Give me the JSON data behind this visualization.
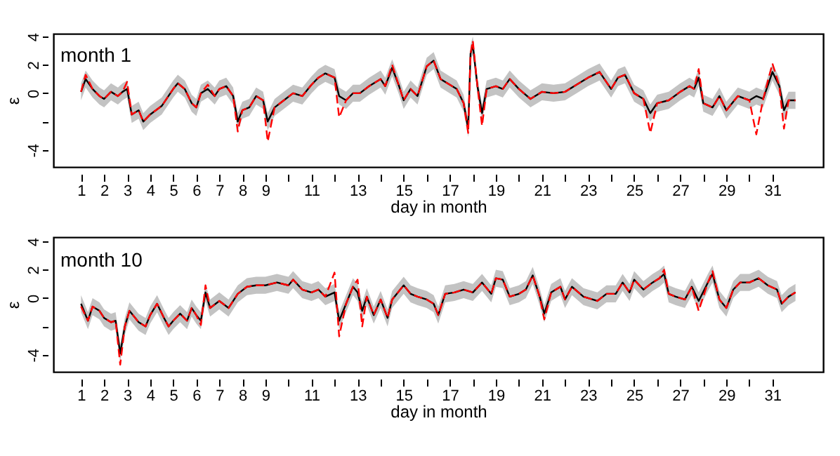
{
  "chart_data": [
    {
      "type": "line",
      "title": "month 1",
      "xlabel": "day in month",
      "ylabel": "ε",
      "xlim": [
        -0.2,
        33.2
      ],
      "ylim": [
        -5.2,
        4.2
      ],
      "xticks": [
        1,
        2,
        3,
        4,
        5,
        6,
        7,
        8,
        9,
        {
          "value": 10,
          "label": null
        },
        11,
        {
          "value": 12,
          "label": null
        },
        13,
        {
          "value": 14,
          "label": null
        },
        15,
        {
          "value": 16,
          "label": null
        },
        17,
        {
          "value": 18,
          "label": null
        },
        19,
        {
          "value": 20,
          "label": null
        },
        21,
        {
          "value": 22,
          "label": null
        },
        23,
        {
          "value": 24,
          "label": null
        },
        25,
        {
          "value": 26,
          "label": null
        },
        27,
        {
          "value": 28,
          "label": null
        },
        29,
        {
          "value": 30,
          "label": null
        },
        31
      ],
      "yticks": [
        -4,
        {
          "value": -2,
          "label": null
        },
        0,
        2,
        4
      ],
      "x": [
        1.0,
        1.2,
        1.5,
        1.8,
        2.0,
        2.3,
        2.6,
        2.8,
        3.0,
        3.2,
        3.5,
        3.7,
        4.0,
        4.5,
        5.0,
        5.2,
        5.5,
        5.8,
        6.0,
        6.2,
        6.5,
        6.8,
        7.0,
        7.3,
        7.6,
        7.8,
        8.0,
        8.3,
        8.6,
        8.9,
        9.1,
        9.4,
        9.8,
        10.2,
        10.6,
        11.0,
        11.3,
        11.6,
        12.0,
        12.2,
        12.5,
        12.8,
        13.1,
        13.5,
        14.0,
        14.2,
        14.5,
        14.8,
        15.0,
        15.3,
        15.6,
        16.0,
        16.3,
        16.6,
        17.0,
        17.3,
        17.6,
        17.8,
        17.9,
        18.0,
        18.2,
        18.4,
        18.6,
        19.0,
        19.3,
        19.6,
        20.0,
        20.5,
        21.0,
        21.5,
        22.0,
        22.5,
        23.0,
        23.5,
        24.0,
        24.3,
        24.6,
        25.0,
        25.4,
        25.7,
        26.0,
        26.5,
        27.0,
        27.4,
        27.6,
        27.8,
        28.0,
        28.4,
        28.7,
        29.0,
        29.5,
        30.0,
        30.3,
        30.6,
        31.0,
        31.3,
        31.5,
        31.7,
        32.0
      ],
      "series": [
        {
          "color": "#000000",
          "line_style": "solid",
          "values": [
            0.1,
            1.0,
            0.3,
            -0.2,
            -0.4,
            0.1,
            -0.2,
            0.1,
            0.3,
            -1.5,
            -1.2,
            -2.0,
            -1.5,
            -0.9,
            0.3,
            0.7,
            0.3,
            -0.7,
            -1.0,
            0.0,
            0.3,
            -0.2,
            0.3,
            0.5,
            -0.2,
            -2.0,
            -1.2,
            -1.0,
            -0.2,
            -0.5,
            -2.0,
            -1.0,
            -0.5,
            0.0,
            -0.2,
            0.6,
            1.1,
            1.4,
            1.1,
            -0.2,
            -0.5,
            0.0,
            0.0,
            0.5,
            1.0,
            0.5,
            1.8,
            0.5,
            -0.5,
            0.3,
            -0.2,
            1.9,
            2.3,
            1.0,
            0.6,
            0.3,
            -0.7,
            -2.5,
            2.8,
            3.4,
            0.5,
            -1.4,
            0.3,
            0.5,
            0.3,
            1.0,
            0.3,
            -0.4,
            0.1,
            0.0,
            0.1,
            0.6,
            1.1,
            1.5,
            0.3,
            1.1,
            1.3,
            0.0,
            -0.4,
            -1.4,
            -0.7,
            -0.5,
            0.1,
            0.5,
            0.3,
            1.1,
            -0.7,
            -1.0,
            -0.2,
            -1.2,
            -0.2,
            -0.5,
            -0.2,
            -0.4,
            1.5,
            0.5,
            -1.2,
            -0.5,
            -0.5
          ],
          "lower": [
            -0.5,
            0.4,
            -0.3,
            -0.8,
            -1.0,
            -0.5,
            -0.8,
            -0.5,
            -0.3,
            -2.1,
            -1.8,
            -2.6,
            -2.1,
            -1.5,
            -0.3,
            0.1,
            -0.3,
            -1.3,
            -1.6,
            -0.6,
            -0.3,
            -0.8,
            -0.3,
            -0.1,
            -0.8,
            -2.6,
            -1.8,
            -1.6,
            -0.8,
            -1.1,
            -2.6,
            -1.6,
            -1.1,
            -0.6,
            -0.8,
            0.0,
            0.5,
            0.8,
            0.5,
            -0.8,
            -1.1,
            -0.6,
            -0.6,
            -0.1,
            0.4,
            -0.1,
            1.2,
            -0.1,
            -1.1,
            -0.3,
            -0.8,
            1.3,
            1.7,
            0.4,
            0.0,
            -0.3,
            -1.3,
            -3.1,
            2.2,
            2.8,
            -0.1,
            -2.0,
            -0.3,
            -0.1,
            -0.3,
            0.4,
            -0.3,
            -1.0,
            -0.5,
            -0.6,
            -0.5,
            0.0,
            0.5,
            0.9,
            -0.3,
            0.5,
            0.7,
            -0.6,
            -1.0,
            -2.0,
            -1.3,
            -1.1,
            -0.5,
            -0.1,
            -0.3,
            0.5,
            -1.3,
            -1.6,
            -0.8,
            -1.8,
            -0.8,
            -1.1,
            -0.8,
            -1.0,
            0.9,
            -0.1,
            -1.8,
            -1.1,
            -1.1
          ],
          "upper": [
            0.7,
            1.6,
            0.9,
            0.4,
            0.2,
            0.7,
            0.4,
            0.7,
            0.9,
            -0.9,
            -0.6,
            -1.4,
            -0.9,
            -0.3,
            0.9,
            1.3,
            0.9,
            -0.1,
            -0.4,
            0.6,
            0.9,
            0.4,
            0.9,
            1.1,
            0.4,
            -1.4,
            -0.6,
            -0.4,
            0.4,
            0.1,
            -1.4,
            -0.4,
            0.1,
            0.6,
            0.4,
            1.2,
            1.7,
            2.0,
            1.7,
            0.4,
            0.1,
            0.6,
            0.6,
            1.1,
            1.6,
            1.1,
            2.4,
            1.1,
            0.1,
            0.9,
            0.4,
            2.5,
            2.9,
            1.6,
            1.2,
            0.9,
            -0.1,
            -1.9,
            3.4,
            4.0,
            1.1,
            -0.8,
            0.9,
            1.1,
            0.9,
            1.6,
            0.9,
            0.2,
            0.7,
            0.6,
            0.7,
            1.2,
            1.7,
            2.1,
            0.9,
            1.7,
            1.9,
            0.6,
            0.2,
            -0.8,
            -0.1,
            0.1,
            0.7,
            1.1,
            0.9,
            1.7,
            -0.1,
            -0.4,
            0.4,
            -0.6,
            0.4,
            0.1,
            0.4,
            0.2,
            2.1,
            1.1,
            -0.6,
            0.1,
            0.1
          ]
        },
        {
          "color": "#ff0000",
          "line_style": "dashed",
          "values": [
            0.1,
            1.3,
            0.3,
            -0.2,
            -0.4,
            0.1,
            -0.2,
            0.1,
            0.8,
            -1.5,
            -1.2,
            -2.0,
            -1.5,
            -0.9,
            0.3,
            0.7,
            0.3,
            -0.7,
            -1.0,
            0.0,
            0.6,
            -0.2,
            0.3,
            0.5,
            -0.2,
            -2.7,
            -1.2,
            -1.0,
            -0.2,
            -0.5,
            -3.4,
            -1.0,
            -0.5,
            0.0,
            -0.2,
            0.6,
            1.1,
            1.4,
            1.1,
            -1.7,
            -0.5,
            0.0,
            0.0,
            0.5,
            1.0,
            0.5,
            2.0,
            0.5,
            -0.5,
            0.3,
            -0.2,
            1.9,
            2.3,
            1.0,
            0.6,
            0.3,
            -0.7,
            -2.8,
            2.8,
            3.7,
            0.5,
            -2.3,
            0.3,
            0.5,
            0.3,
            1.0,
            0.3,
            -0.4,
            0.1,
            0.0,
            0.1,
            0.6,
            1.1,
            1.5,
            0.3,
            1.1,
            1.3,
            0.0,
            -0.4,
            -2.8,
            -0.7,
            -0.5,
            0.1,
            0.5,
            0.3,
            1.7,
            -0.7,
            -1.0,
            -0.2,
            -1.2,
            -0.2,
            -0.5,
            -2.9,
            -0.4,
            2.1,
            0.5,
            -2.5,
            -0.5,
            -0.5
          ]
        }
      ]
    },
    {
      "type": "line",
      "title": "month 10",
      "xlabel": "day in month",
      "ylabel": "ε",
      "xlim": [
        -0.2,
        33.2
      ],
      "ylim": [
        -5.2,
        4.3
      ],
      "xticks": [
        1,
        2,
        3,
        4,
        5,
        6,
        7,
        8,
        9,
        {
          "value": 10,
          "label": null
        },
        11,
        {
          "value": 12,
          "label": null
        },
        13,
        {
          "value": 14,
          "label": null
        },
        15,
        {
          "value": 16,
          "label": null
        },
        17,
        {
          "value": 18,
          "label": null
        },
        19,
        {
          "value": 20,
          "label": null
        },
        21,
        {
          "value": 22,
          "label": null
        },
        23,
        {
          "value": 24,
          "label": null
        },
        25,
        {
          "value": 26,
          "label": null
        },
        27,
        {
          "value": 28,
          "label": null
        },
        29,
        {
          "value": 30,
          "label": null
        },
        31
      ],
      "yticks": [
        -4,
        {
          "value": -2,
          "label": null
        },
        0,
        2,
        4
      ],
      "x": [
        1.0,
        1.3,
        1.5,
        1.8,
        2.0,
        2.3,
        2.5,
        2.7,
        2.9,
        3.1,
        3.5,
        3.8,
        4.0,
        4.3,
        4.6,
        4.8,
        5.0,
        5.3,
        5.6,
        5.8,
        6.0,
        6.2,
        6.4,
        6.6,
        7.0,
        7.4,
        7.8,
        8.2,
        8.6,
        9.0,
        9.5,
        10.0,
        10.2,
        10.6,
        11.0,
        11.3,
        11.6,
        12.0,
        12.2,
        12.5,
        12.8,
        13.0,
        13.2,
        13.4,
        13.7,
        14.0,
        14.3,
        14.5,
        15.0,
        15.3,
        15.6,
        16.0,
        16.3,
        16.5,
        16.8,
        17.2,
        17.6,
        18.0,
        18.4,
        18.8,
        19.0,
        19.3,
        19.6,
        20.0,
        20.3,
        20.6,
        20.9,
        21.1,
        21.4,
        21.8,
        22.0,
        22.3,
        22.8,
        23.4,
        23.8,
        24.2,
        24.5,
        24.8,
        25.0,
        25.4,
        25.8,
        26.1,
        26.3,
        26.5,
        26.8,
        27.2,
        27.5,
        27.8,
        28.2,
        28.4,
        28.7,
        29.0,
        29.3,
        29.6,
        30.0,
        30.4,
        30.8,
        31.2,
        31.4,
        31.7,
        32.0
      ],
      "series": [
        {
          "color": "#000000",
          "line_style": "solid",
          "values": [
            -0.4,
            -1.6,
            -0.6,
            -0.9,
            -1.4,
            -1.7,
            -1.6,
            -3.9,
            -2.0,
            -0.9,
            -1.7,
            -2.0,
            -1.2,
            -0.4,
            -1.4,
            -2.0,
            -1.6,
            -1.1,
            -1.6,
            -0.7,
            -1.2,
            -1.6,
            0.4,
            -0.7,
            -0.2,
            -0.7,
            0.3,
            0.8,
            0.9,
            0.9,
            1.1,
            0.9,
            1.3,
            0.6,
            0.4,
            0.6,
            0.1,
            0.4,
            -1.6,
            -0.4,
            0.8,
            0.4,
            -0.9,
            0.1,
            -1.2,
            -0.1,
            -1.4,
            -0.1,
            0.9,
            0.3,
            0.1,
            -0.1,
            -0.4,
            -1.2,
            0.3,
            0.4,
            0.6,
            0.4,
            1.1,
            0.3,
            1.4,
            1.3,
            0.1,
            0.3,
            0.6,
            1.6,
            0.1,
            -1.1,
            0.4,
            0.8,
            -0.1,
            0.8,
            0.1,
            -0.2,
            0.3,
            0.3,
            1.1,
            0.4,
            1.3,
            0.6,
            1.1,
            1.4,
            1.7,
            0.3,
            0.1,
            -0.1,
            0.8,
            -0.2,
            1.1,
            1.7,
            -0.1,
            -0.7,
            0.6,
            1.1,
            1.1,
            1.4,
            0.9,
            0.6,
            -0.4,
            0.1,
            0.4
          ],
          "lower": [
            -1.0,
            -2.2,
            -1.2,
            -1.5,
            -2.0,
            -2.3,
            -2.2,
            -4.5,
            -2.6,
            -1.5,
            -2.3,
            -2.6,
            -1.8,
            -1.0,
            -2.0,
            -2.6,
            -2.2,
            -1.7,
            -2.2,
            -1.3,
            -1.8,
            -2.2,
            -0.2,
            -1.3,
            -0.8,
            -1.3,
            -0.3,
            0.2,
            0.3,
            0.3,
            0.5,
            0.3,
            0.7,
            0.0,
            -0.2,
            0.0,
            -0.5,
            -0.2,
            -2.2,
            -1.0,
            0.2,
            -0.2,
            -1.5,
            -0.5,
            -1.8,
            -0.7,
            -2.0,
            -0.7,
            0.3,
            -0.3,
            -0.5,
            -0.7,
            -1.0,
            -1.8,
            -0.3,
            -0.2,
            0.0,
            -0.2,
            0.5,
            -0.3,
            0.8,
            0.7,
            -0.5,
            -0.3,
            0.0,
            1.0,
            -0.5,
            -1.7,
            -0.2,
            0.2,
            -0.7,
            0.2,
            -0.5,
            -0.8,
            -0.3,
            -0.3,
            0.5,
            -0.2,
            0.7,
            0.0,
            0.5,
            0.8,
            1.1,
            -0.3,
            -0.5,
            -0.7,
            0.2,
            -0.8,
            0.5,
            1.1,
            -0.7,
            -1.3,
            0.0,
            0.5,
            0.5,
            0.8,
            0.3,
            0.0,
            -1.0,
            -0.5,
            -0.2
          ],
          "upper": [
            0.2,
            -1.0,
            0.0,
            -0.3,
            -0.8,
            -1.1,
            -1.0,
            -3.3,
            -1.4,
            -0.3,
            -1.1,
            -1.4,
            -0.6,
            0.2,
            -0.8,
            -1.4,
            -1.0,
            -0.5,
            -1.0,
            -0.1,
            -0.6,
            -1.0,
            1.0,
            -0.1,
            0.4,
            -0.1,
            0.9,
            1.4,
            1.5,
            1.5,
            1.7,
            1.5,
            1.9,
            1.2,
            1.0,
            1.2,
            0.7,
            1.0,
            -1.0,
            0.2,
            1.4,
            1.0,
            -0.3,
            0.7,
            -0.6,
            0.5,
            -0.8,
            0.5,
            1.5,
            0.9,
            0.7,
            0.5,
            0.2,
            -0.6,
            0.9,
            1.0,
            1.2,
            1.0,
            1.7,
            0.9,
            2.0,
            1.9,
            0.7,
            0.9,
            1.2,
            2.2,
            0.7,
            -0.5,
            1.0,
            1.4,
            0.5,
            1.4,
            0.7,
            0.4,
            0.9,
            0.9,
            1.7,
            1.0,
            1.9,
            1.2,
            1.7,
            2.0,
            2.3,
            0.9,
            0.7,
            0.5,
            1.4,
            0.4,
            1.7,
            2.3,
            0.5,
            -0.1,
            1.2,
            1.7,
            1.7,
            2.0,
            1.5,
            1.2,
            0.2,
            0.7,
            1.0
          ]
        },
        {
          "color": "#ff0000",
          "line_style": "dashed",
          "values": [
            -0.6,
            -1.6,
            -0.6,
            -0.9,
            -1.4,
            -1.7,
            -1.6,
            -4.7,
            -2.0,
            -0.9,
            -1.7,
            -2.0,
            -1.2,
            -0.4,
            -1.4,
            -2.0,
            -1.6,
            -1.1,
            -1.6,
            -0.7,
            -1.2,
            -1.9,
            0.9,
            -0.7,
            -0.2,
            -0.7,
            0.3,
            0.8,
            0.9,
            0.9,
            1.1,
            0.9,
            1.3,
            0.6,
            0.4,
            0.6,
            0.1,
            1.8,
            -2.7,
            -0.4,
            0.8,
            1.3,
            -2.0,
            0.1,
            -1.2,
            -0.1,
            -1.4,
            -0.1,
            0.9,
            0.3,
            0.1,
            -0.1,
            -0.4,
            -1.2,
            0.3,
            0.4,
            0.6,
            0.4,
            1.1,
            0.3,
            1.4,
            1.3,
            0.1,
            0.3,
            0.6,
            1.6,
            0.1,
            -1.5,
            0.4,
            0.8,
            -0.1,
            0.8,
            0.1,
            -0.2,
            0.3,
            0.3,
            1.1,
            0.4,
            1.3,
            0.6,
            1.1,
            1.4,
            2.0,
            0.3,
            0.1,
            -0.1,
            0.8,
            -0.9,
            1.1,
            1.9,
            -0.1,
            -0.7,
            0.6,
            1.1,
            1.1,
            1.4,
            0.9,
            0.6,
            -0.4,
            0.1,
            0.4
          ]
        }
      ]
    }
  ]
}
